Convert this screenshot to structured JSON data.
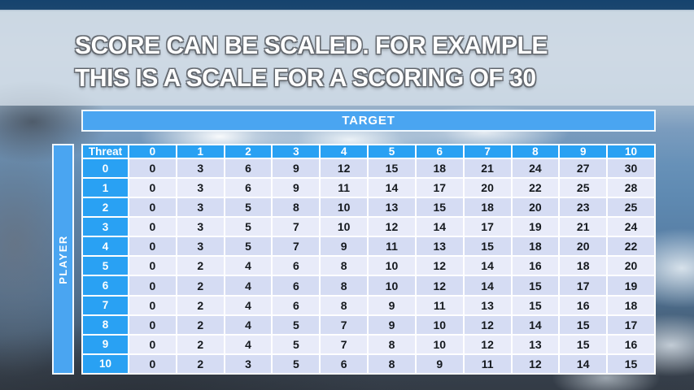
{
  "colors": {
    "accent_blue": "#29a1f3",
    "bar_blue": "#4aa5f1",
    "row_dark": "#d5dcf3",
    "row_light": "#e8ebf9",
    "cell_text": "#15191e",
    "header_text": "#ffffff"
  },
  "title": {
    "line1": "SCORE CAN BE SCALED. FOR EXAMPLE",
    "line2": "THIS IS A SCALE FOR A SCORING OF 30"
  },
  "table": {
    "target_label": "TARGET",
    "player_label": "PLAYER",
    "corner_label": "Threat",
    "column_headers": [
      "0",
      "1",
      "2",
      "3",
      "4",
      "5",
      "6",
      "7",
      "8",
      "9",
      "10"
    ],
    "rows": [
      {
        "header": "0",
        "values": [
          0,
          3,
          6,
          9,
          12,
          15,
          18,
          21,
          24,
          27,
          30
        ]
      },
      {
        "header": "1",
        "values": [
          0,
          3,
          6,
          9,
          11,
          14,
          17,
          20,
          22,
          25,
          28
        ]
      },
      {
        "header": "2",
        "values": [
          0,
          3,
          5,
          8,
          10,
          13,
          15,
          18,
          20,
          23,
          25
        ]
      },
      {
        "header": "3",
        "values": [
          0,
          3,
          5,
          7,
          10,
          12,
          14,
          17,
          19,
          21,
          24
        ]
      },
      {
        "header": "4",
        "values": [
          0,
          3,
          5,
          7,
          9,
          11,
          13,
          15,
          18,
          20,
          22
        ]
      },
      {
        "header": "5",
        "values": [
          0,
          2,
          4,
          6,
          8,
          10,
          12,
          14,
          16,
          18,
          20
        ]
      },
      {
        "header": "6",
        "values": [
          0,
          2,
          4,
          6,
          8,
          10,
          12,
          14,
          15,
          17,
          19
        ]
      },
      {
        "header": "7",
        "values": [
          0,
          2,
          4,
          6,
          8,
          9,
          11,
          13,
          15,
          16,
          18
        ]
      },
      {
        "header": "8",
        "values": [
          0,
          2,
          4,
          5,
          7,
          9,
          10,
          12,
          14,
          15,
          17
        ]
      },
      {
        "header": "9",
        "values": [
          0,
          2,
          4,
          5,
          7,
          8,
          10,
          12,
          13,
          15,
          16
        ]
      },
      {
        "header": "10",
        "values": [
          0,
          2,
          3,
          5,
          6,
          8,
          9,
          11,
          12,
          14,
          15
        ]
      }
    ]
  }
}
